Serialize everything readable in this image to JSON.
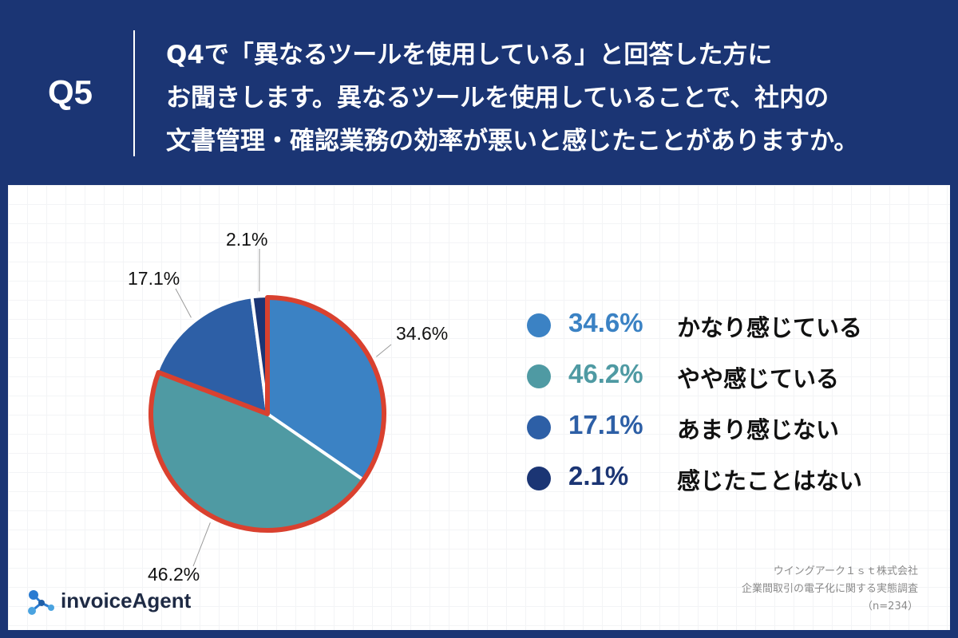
{
  "header": {
    "q_number": "Q5",
    "question_lines": [
      "Q4で「異なるツールを使用している」と回答した方に",
      "お聞きします。異なるツールを使用していることで、社内の",
      "文書管理・確認業務の効率が悪いと感じたことがありますか。"
    ]
  },
  "chart_data": {
    "type": "pie",
    "title": "Q4で「異なるツールを使用している」と回答した方にお聞きします。異なるツールを使用していることで、社内の文書管理・確認業務の効率が悪いと感じたことがありますか。",
    "slices": [
      {
        "label": "かなり感じている",
        "value": 34.6,
        "value_label": "34.6%",
        "color": "#3b82c4"
      },
      {
        "label": "やや感じている",
        "value": 46.2,
        "value_label": "46.2%",
        "color": "#4f9aa3"
      },
      {
        "label": "あまり感じない",
        "value": 17.1,
        "value_label": "17.1%",
        "color": "#2d5fa6"
      },
      {
        "label": "感じたことはない",
        "value": 2.1,
        "value_label": "2.1%",
        "color": "#1b3574"
      }
    ],
    "highlight": {
      "slices": [
        0,
        1
      ],
      "color": "#d9412f"
    },
    "legend_position": "right"
  },
  "source": {
    "company": "ウイングアーク１ｓｔ株式会社",
    "survey": "企業間取引の電子化に関する実態調査",
    "n": "（n=234）"
  },
  "logo": {
    "text": "invoiceAgent"
  }
}
